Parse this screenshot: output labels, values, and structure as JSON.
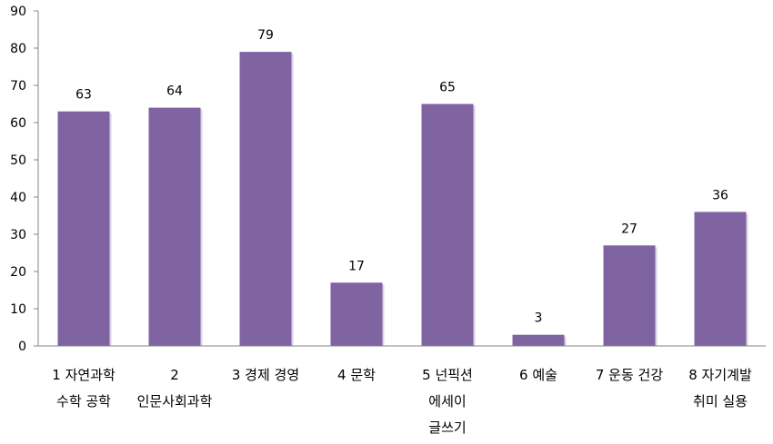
{
  "chart_data": {
    "type": "bar",
    "categories": [
      [
        "1 자연과학",
        "수학 공학"
      ],
      [
        "2",
        "인문사회과학"
      ],
      [
        "3 경제 경영"
      ],
      [
        "4 문학"
      ],
      [
        "5 넌픽션",
        "에세이",
        "글쓰기"
      ],
      [
        "6 예술"
      ],
      [
        "7 운동 건강"
      ],
      [
        "8 자기계발",
        "취미 실용"
      ]
    ],
    "values": [
      63,
      64,
      79,
      17,
      65,
      3,
      27,
      36
    ],
    "ylim": [
      0,
      90
    ],
    "yticks": [
      0,
      10,
      20,
      30,
      40,
      50,
      60,
      70,
      80,
      90
    ],
    "data_labels": [
      "63",
      "64",
      "79",
      "17",
      "65",
      "3",
      "27",
      "36"
    ],
    "title": "",
    "xlabel": "",
    "ylabel": "",
    "grid": false,
    "legend": "none",
    "bar_color": "#8064a2"
  }
}
